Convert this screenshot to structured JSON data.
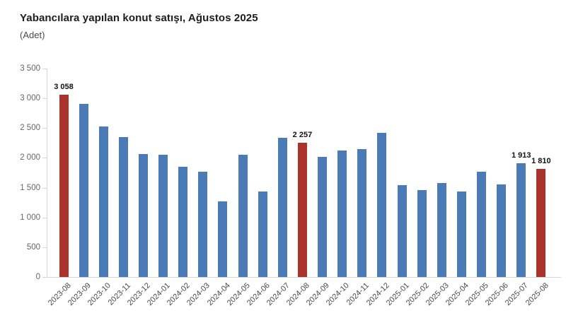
{
  "title": "Yabancılara yapılan konut satışı, Ağustos 2025",
  "subtitle": "(Adet)",
  "colors": {
    "bar_blue": "#4a7bb7",
    "bar_red": "#aa342c",
    "axis": "#d6d6d6",
    "y_tick_label": "#666666",
    "x_label": "#4a4a4a",
    "data_label": "#111111",
    "background": "#ffffff"
  },
  "chart_data": {
    "type": "bar",
    "title": "Yabancılara yapılan konut satışı, Ağustos 2025",
    "subtitle_unit": "(Adet)",
    "xlabel": "",
    "ylabel": "",
    "ylim": [
      0,
      3500
    ],
    "y_tick_step": 500,
    "y_tick_labels": [
      "3 500",
      "3 000",
      "2 500",
      "2 000",
      "1 500",
      "1 000",
      "500",
      "0"
    ],
    "grid": false,
    "legend": false,
    "categories": [
      "2023-08",
      "2023-09",
      "2023-10",
      "2023-11",
      "2023-12",
      "2024-01",
      "2024-02",
      "2024-03",
      "2024-04",
      "2024-05",
      "2024-06",
      "2024-07",
      "2024-08",
      "2024-09",
      "2024-10",
      "2024-11",
      "2024-12",
      "2025-01",
      "2025-02",
      "2025-03",
      "2025-04",
      "2025-05",
      "2025-06",
      "2025-07",
      "2025-08"
    ],
    "values": [
      3058,
      2910,
      2530,
      2345,
      2060,
      2050,
      1850,
      1765,
      1275,
      2055,
      1435,
      2335,
      2257,
      2020,
      2120,
      2150,
      2415,
      1540,
      1455,
      1575,
      1435,
      1765,
      1560,
      1913,
      1810
    ],
    "highlight_indices": [
      0,
      12,
      24
    ],
    "data_labels": {
      "0": "3 058",
      "12": "2 257",
      "23": "1 913",
      "24": "1 810"
    }
  }
}
